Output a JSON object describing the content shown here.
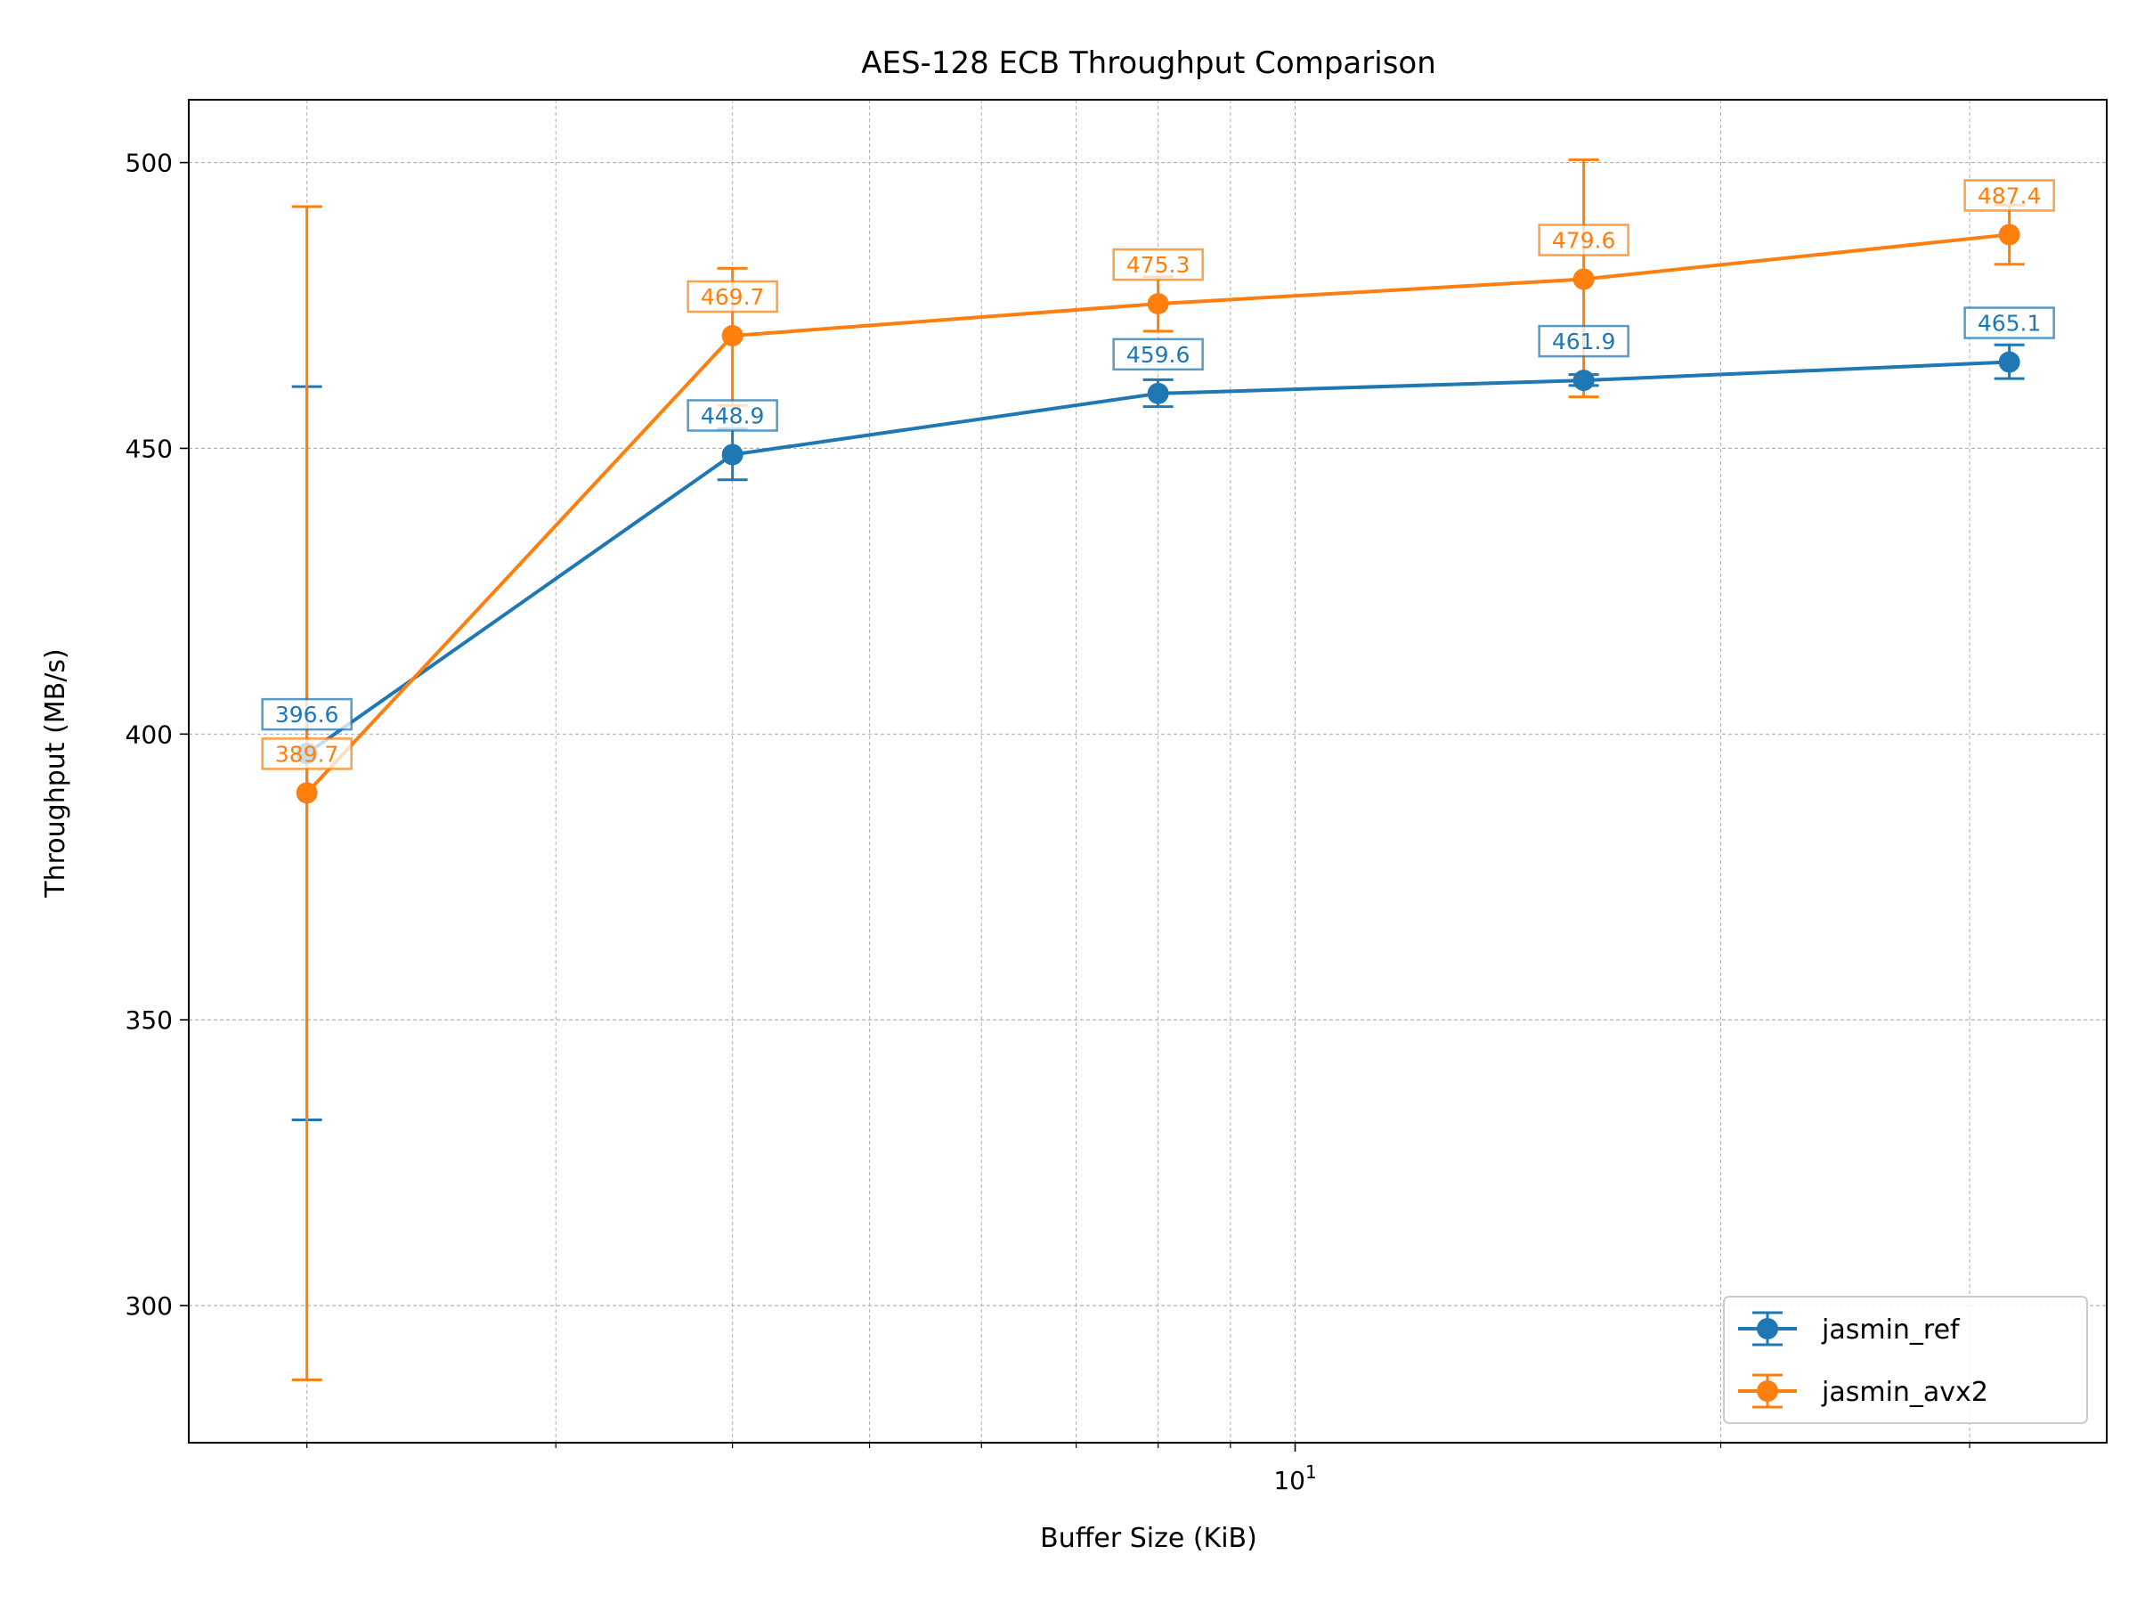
{
  "chart_data": {
    "type": "line",
    "title": "AES-128 ECB Throughput Comparison",
    "xlabel": "Buffer Size (KiB)",
    "ylabel": "Throughput (MB/s)",
    "x_scale": "log",
    "x": [
      2,
      4,
      8,
      16,
      32
    ],
    "xlim": [
      1.65,
      37.5
    ],
    "ylim": [
      276,
      511
    ],
    "y_ticks": [
      300,
      350,
      400,
      450,
      500
    ],
    "x_major_ticks": [
      {
        "value": 10,
        "base": "10",
        "exp": "1"
      }
    ],
    "x_minor_ticks": [
      2,
      3,
      4,
      5,
      6,
      7,
      8,
      9,
      20,
      30
    ],
    "grid": true,
    "legend_position": "lower-right",
    "series": [
      {
        "name": "jasmin_ref",
        "color": "#1f77b4",
        "values": [
          396.6,
          448.9,
          459.6,
          461.9,
          465.1
        ],
        "err_low": [
          332.5,
          444.5,
          457.3,
          461.0,
          462.2
        ],
        "err_high": [
          460.8,
          453.4,
          462.0,
          462.9,
          468.1
        ],
        "labels": [
          "396.6",
          "448.9",
          "459.6",
          "461.9",
          "465.1"
        ]
      },
      {
        "name": "jasmin_avx2",
        "color": "#ff7f0e",
        "values": [
          389.7,
          469.7,
          475.3,
          479.6,
          487.4
        ],
        "err_low": [
          287.0,
          457.5,
          470.5,
          459.0,
          482.2
        ],
        "err_high": [
          492.3,
          481.5,
          480.0,
          500.5,
          492.6
        ],
        "labels": [
          "389.7",
          "469.7",
          "475.3",
          "479.6",
          "487.4"
        ]
      }
    ]
  }
}
